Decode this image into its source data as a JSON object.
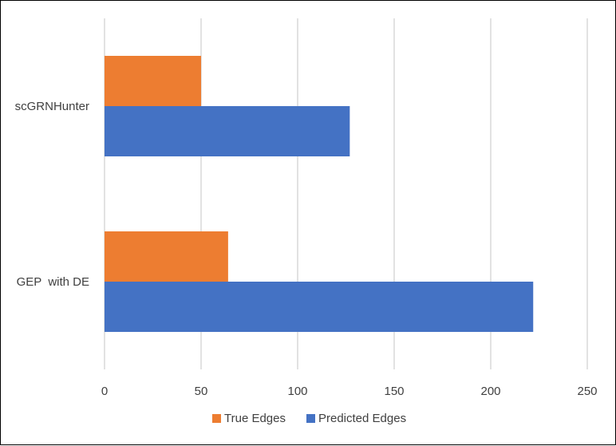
{
  "chart_data": {
    "type": "bar",
    "orientation": "horizontal",
    "categories": [
      "scGRNHunter",
      "GEP  with DE"
    ],
    "series": [
      {
        "name": "True Edges",
        "color": "#ED7D31",
        "values": [
          50,
          64
        ]
      },
      {
        "name": "Predicted Edges",
        "color": "#4472C4",
        "values": [
          127,
          222
        ]
      }
    ],
    "x_ticks": [
      "0",
      "50",
      "100",
      "150",
      "200",
      "250"
    ],
    "xlim": [
      0,
      250
    ],
    "grid": true,
    "legend": "bottom",
    "title": "",
    "xlabel": "",
    "ylabel": ""
  }
}
